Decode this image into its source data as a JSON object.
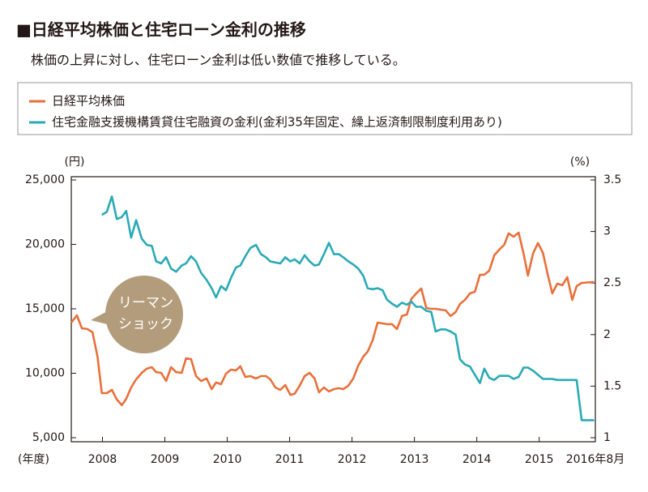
{
  "chart_data": {
    "type": "line",
    "title": "■日経平均株価と住宅ローン金利の推移",
    "subtitle": "株価の上昇に対し、住宅ローン金利は低い数値で推移している。",
    "y_label": "(円)",
    "y2_label": "(%)",
    "x_label": "(年度)",
    "annotation": [
      "リーマン",
      "ショック"
    ],
    "x": [
      2007.5,
      2007.59,
      2007.67,
      2007.76,
      2007.84,
      2007.92,
      2007.99,
      2008.07,
      2008.15,
      2008.23,
      2008.31,
      2008.38,
      2008.46,
      2008.54,
      2008.63,
      2008.71,
      2008.79,
      2008.86,
      2008.94,
      2009.02,
      2009.1,
      2009.18,
      2009.27,
      2009.34,
      2009.42,
      2009.5,
      2009.58,
      2009.67,
      2009.75,
      2009.82,
      2009.9,
      2009.98,
      2010.06,
      2010.14,
      2010.21,
      2010.29,
      2010.37,
      2010.46,
      2010.54,
      2010.62,
      2010.69,
      2010.77,
      2010.85,
      2010.93,
      2011.01,
      2011.08,
      2011.16,
      2011.24,
      2011.32,
      2011.4,
      2011.47,
      2011.55,
      2011.63,
      2011.71,
      2011.79,
      2011.86,
      2011.94,
      2012.02,
      2012.1,
      2012.18,
      2012.25,
      2012.33,
      2012.41,
      2012.49,
      2012.56,
      2012.64,
      2012.72,
      2012.8,
      2012.88,
      2012.95,
      2013.03,
      2013.11,
      2013.19,
      2013.27,
      2013.34,
      2013.42,
      2013.5,
      2013.58,
      2013.66,
      2013.73,
      2013.81,
      2013.89,
      2013.97,
      2014.05,
      2014.12,
      2014.2,
      2014.28,
      2014.36,
      2014.44,
      2014.51,
      2014.59,
      2014.67,
      2014.75,
      2014.82,
      2014.9,
      2014.98,
      2015.06,
      2015.14,
      2015.21,
      2015.29,
      2015.37,
      2015.45,
      2015.53,
      2015.6,
      2015.68,
      2015.88
    ],
    "series": [
      {
        "name": "日経平均株価",
        "color": "#e8703a",
        "values": [
          13930,
          14500,
          13490,
          13430,
          13180,
          11290,
          8460,
          8460,
          8710,
          7960,
          7520,
          8020,
          8900,
          9530,
          10030,
          10350,
          10470,
          10090,
          10030,
          9400,
          10470,
          10090,
          10030,
          11160,
          11100,
          9780,
          9400,
          9590,
          8770,
          9280,
          9150,
          9970,
          10280,
          10220,
          10540,
          9720,
          9780,
          9590,
          9780,
          9780,
          9530,
          8900,
          8710,
          9090,
          8330,
          8400,
          9030,
          9780,
          10030,
          9590,
          8520,
          8900,
          8590,
          8770,
          8840,
          8770,
          9030,
          9590,
          10600,
          11290,
          11670,
          12550,
          13930,
          13870,
          13810,
          13810,
          13430,
          14440,
          14560,
          15760,
          16200,
          16570,
          15060,
          15000,
          15000,
          14940,
          14880,
          14440,
          14750,
          15380,
          15690,
          16200,
          16320,
          17640,
          17640,
          17960,
          19150,
          19590,
          19970,
          20850,
          20600,
          20910,
          19280,
          17580,
          19280,
          20100,
          19340,
          17580,
          16200,
          16950,
          16830,
          17450,
          15690,
          16760,
          17010,
          17080
        ]
      },
      {
        "name": "住宅金融支援機構賃貸住宅融資の金利(金利35年固定、繰上返済制限制度利用あり)",
        "color": "#2aaab5",
        "axis": "y2",
        "values": [
          null,
          null,
          null,
          null,
          null,
          null,
          3.16,
          3.19,
          3.34,
          3.12,
          3.14,
          3.2,
          2.94,
          3.11,
          2.93,
          2.87,
          2.86,
          2.71,
          2.69,
          2.75,
          2.64,
          2.61,
          2.67,
          2.69,
          2.76,
          2.71,
          2.6,
          2.53,
          2.45,
          2.36,
          2.47,
          2.43,
          2.55,
          2.65,
          2.67,
          2.76,
          2.84,
          2.87,
          2.78,
          2.75,
          2.71,
          2.7,
          2.69,
          2.75,
          2.71,
          2.73,
          2.69,
          2.77,
          2.71,
          2.67,
          2.68,
          2.78,
          2.89,
          2.78,
          2.78,
          2.75,
          2.71,
          2.68,
          2.64,
          2.57,
          2.45,
          2.44,
          2.45,
          2.43,
          2.34,
          2.3,
          2.27,
          2.31,
          2.29,
          2.32,
          2.27,
          2.27,
          2.23,
          2.22,
          2.03,
          2.05,
          2.05,
          2.03,
          2.0,
          1.76,
          1.71,
          1.69,
          1.61,
          1.53,
          1.67,
          1.58,
          1.56,
          1.6,
          1.6,
          1.6,
          1.57,
          1.59,
          1.68,
          1.68,
          1.65,
          1.61,
          1.57,
          1.57,
          1.57,
          1.56,
          1.56,
          1.56,
          1.56,
          1.56,
          1.17,
          1.17
        ]
      }
    ],
    "xlim": [
      2007.5,
      2015.9
    ],
    "xticks": [
      2008,
      2009,
      2010,
      2011,
      2012,
      2013,
      2014,
      2015,
      {
        "value": 2015.9,
        "label": "2016年8月"
      }
    ],
    "ylim": [
      5000,
      25000
    ],
    "yticks": [
      {
        "value": 5000,
        "label": "5,000"
      },
      {
        "value": 10000,
        "label": "10,000"
      },
      {
        "value": 15000,
        "label": "15,000"
      },
      {
        "value": 20000,
        "label": "20,000"
      },
      {
        "value": 25000,
        "label": "25,000"
      }
    ],
    "y2lim": [
      1,
      3.5
    ],
    "y2ticks": [
      1,
      1.5,
      2,
      2.5,
      3,
      3.5
    ],
    "legend": "top"
  }
}
